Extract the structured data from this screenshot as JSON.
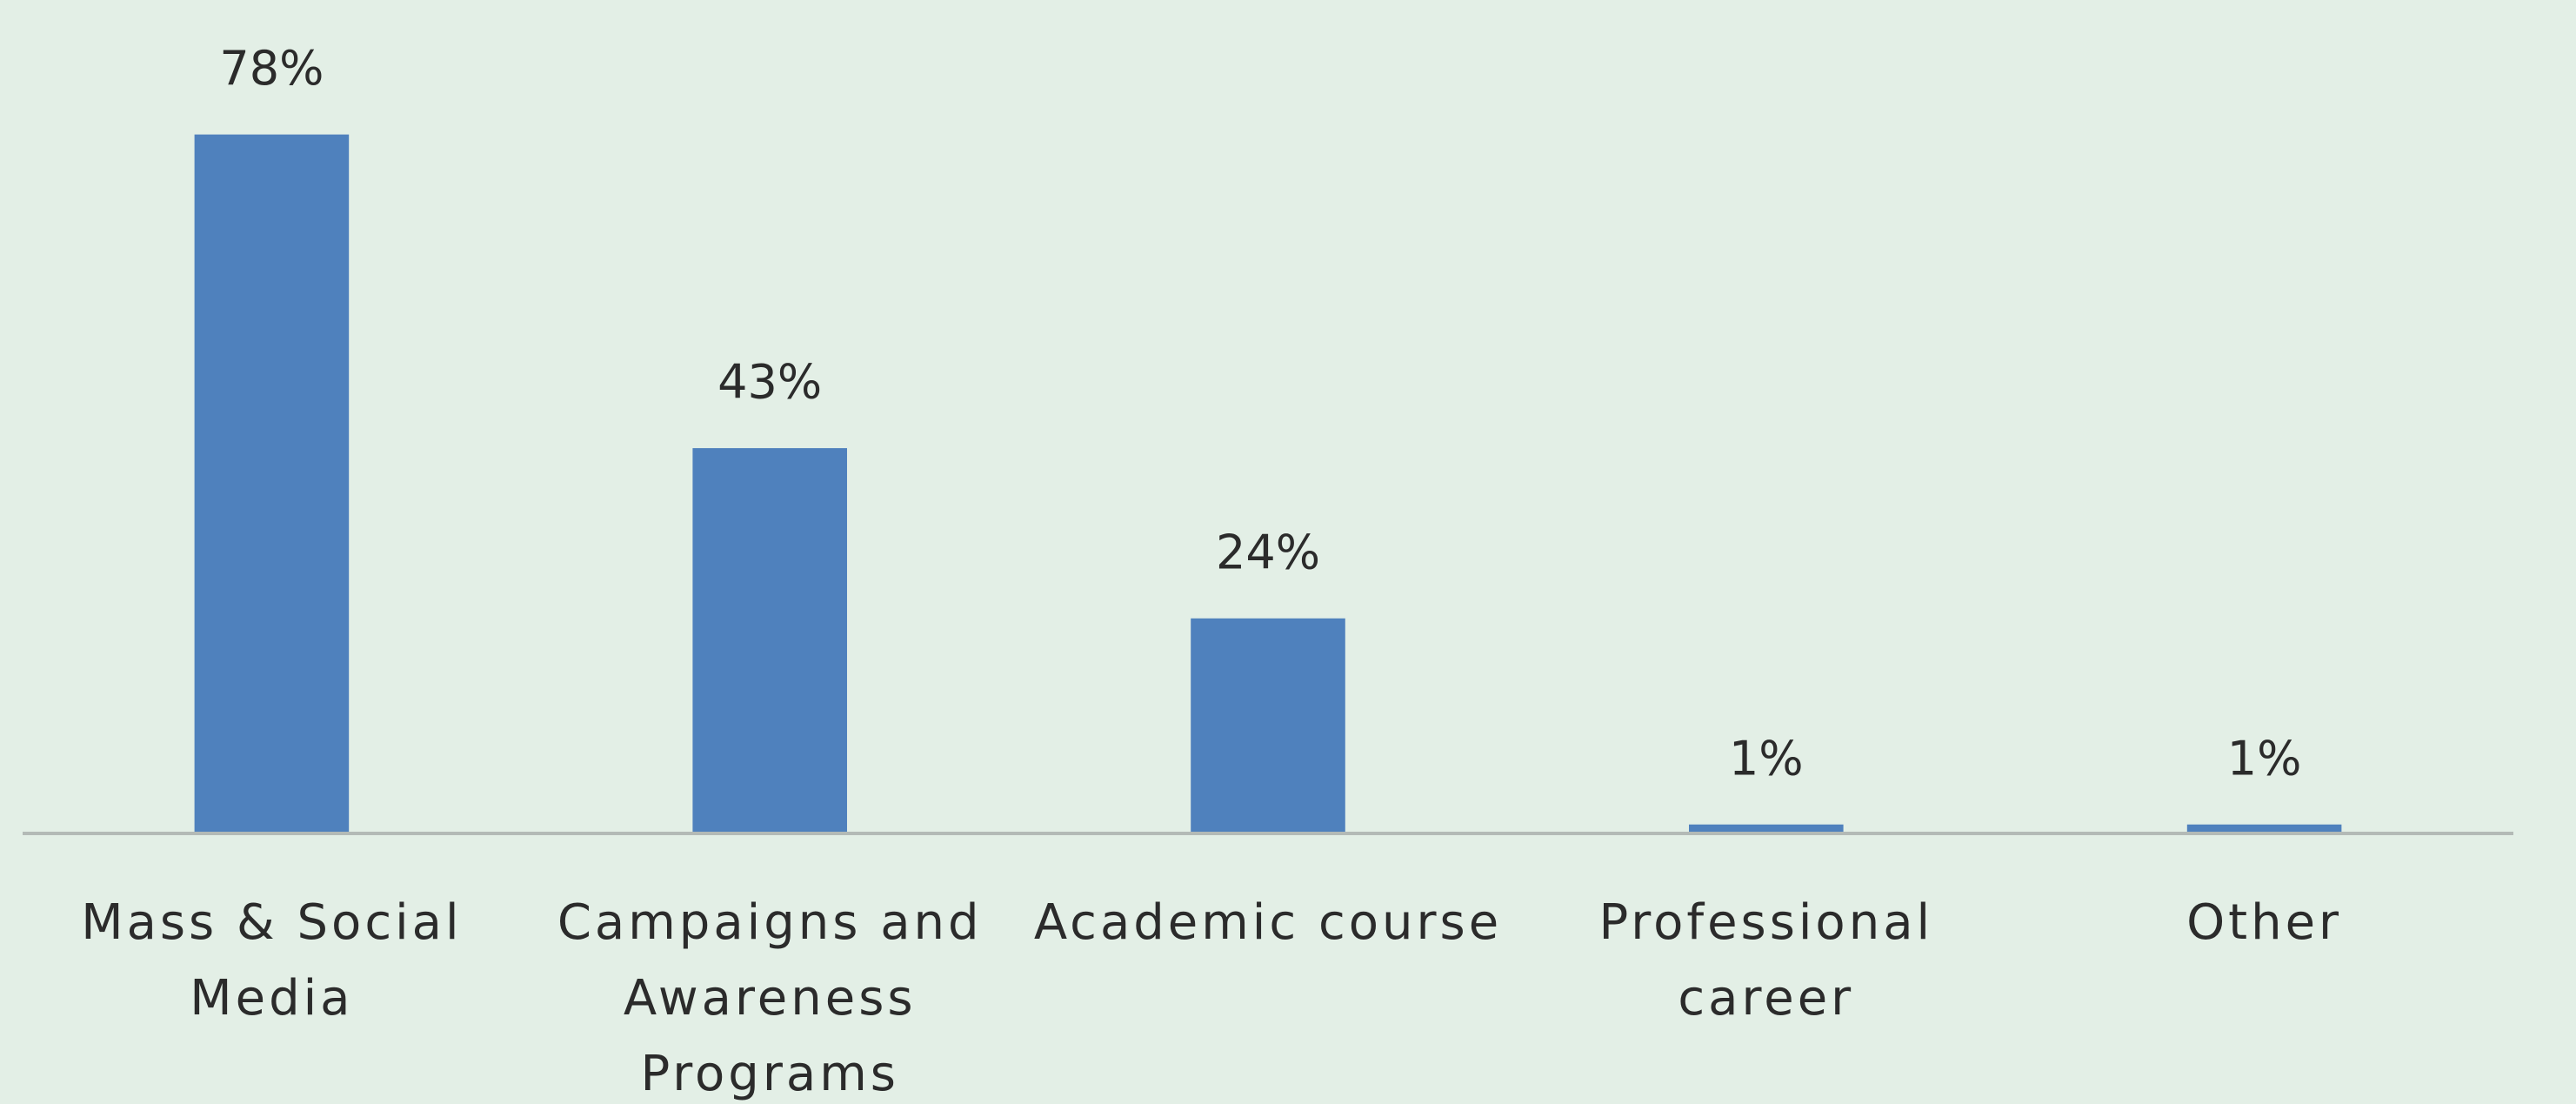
{
  "chart_data": {
    "type": "bar",
    "categories": [
      "Mass & Social Media",
      "Campaigns and Awareness Programs",
      "Academic course",
      "Professional career",
      "Other"
    ],
    "values": [
      78,
      43,
      24,
      1,
      1
    ],
    "value_labels": [
      "78%",
      "43%",
      "24%",
      "1%",
      "1%"
    ],
    "color": "#4f81bd",
    "ylim": [
      0,
      80
    ]
  }
}
